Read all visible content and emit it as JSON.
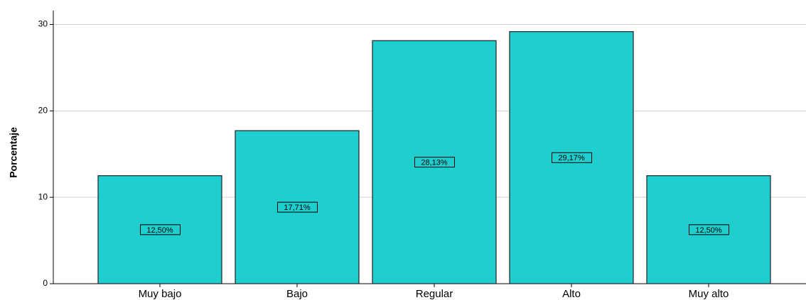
{
  "chart_data": {
    "type": "bar",
    "y_axis_label": "Porcentaje",
    "categories": [
      "Muy bajo",
      "Bajo",
      "Regular",
      "Alto",
      "Muy alto"
    ],
    "values": [
      12.5,
      17.71,
      28.13,
      29.17,
      12.5
    ],
    "value_labels": [
      "12,50%",
      "17,71%",
      "28,13%",
      "29,17%",
      "12,50%"
    ],
    "color": "#1fcece",
    "ylim": [
      0,
      31.6
    ],
    "yticks": [
      0,
      10,
      20,
      30
    ],
    "grid": true
  }
}
